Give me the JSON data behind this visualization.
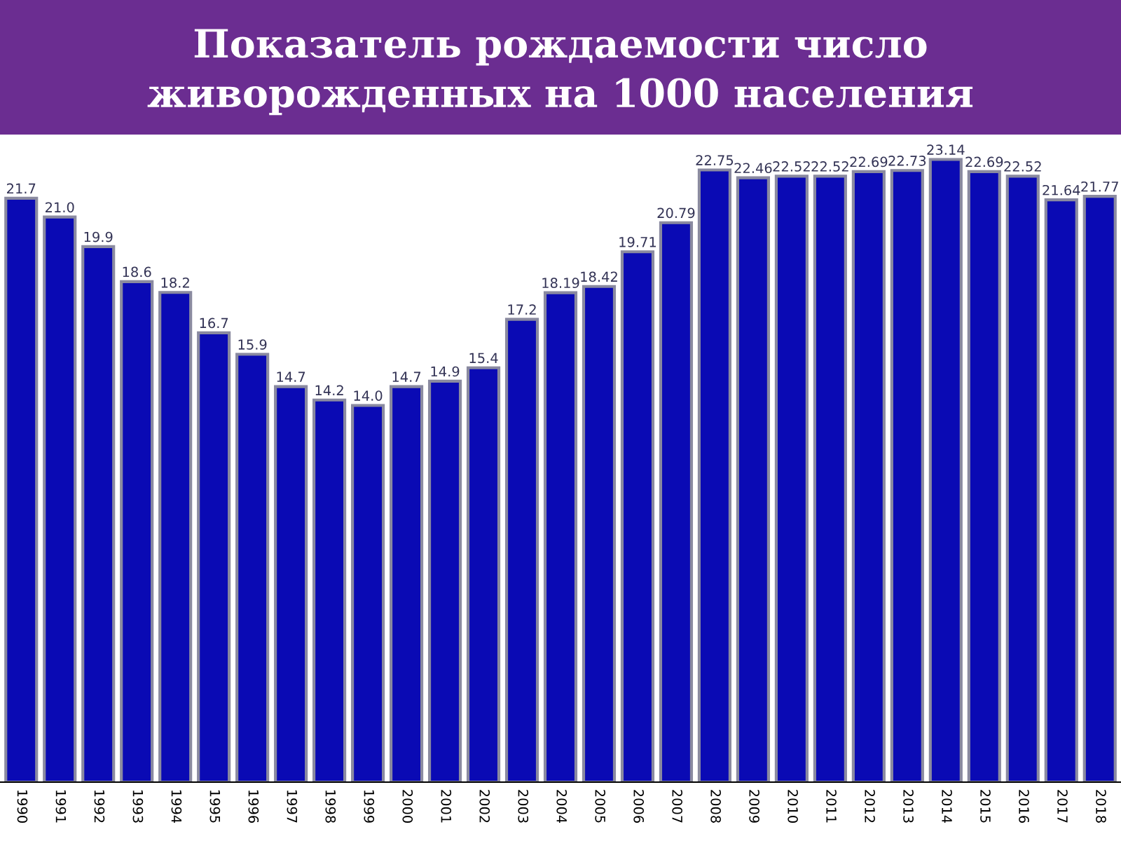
{
  "chart_data": {
    "type": "bar",
    "title": "Показатель рождаемости число\nживорожденных на 1000 населения",
    "categories": [
      "1990",
      "1991",
      "1992",
      "1993",
      "1994",
      "1995",
      "1996",
      "1997",
      "1998",
      "1999",
      "2000",
      "2001",
      "2002",
      "2003",
      "2004",
      "2005",
      "2006",
      "2007",
      "2008",
      "2009",
      "2010",
      "2011",
      "2012",
      "2013",
      "2014",
      "2015",
      "2016",
      "2017",
      "2018"
    ],
    "values": [
      21.7,
      21.0,
      19.9,
      18.6,
      18.2,
      16.7,
      15.9,
      14.7,
      14.2,
      14.0,
      14.7,
      14.9,
      15.4,
      17.2,
      18.19,
      18.42,
      19.71,
      20.79,
      22.75,
      22.46,
      22.52,
      22.52,
      22.69,
      22.73,
      23.14,
      22.69,
      22.52,
      21.64,
      21.77
    ],
    "value_labels": [
      "21.7",
      "21.0",
      "19.9",
      "18.6",
      "18.2",
      "16.7",
      "15.9",
      "14.7",
      "14.2",
      "14.0",
      "14.7",
      "14.9",
      "15.4",
      "17.2",
      "18.19",
      "18.42",
      "19.71",
      "20.79",
      "22.75",
      "22.46",
      "22.52",
      "22.52",
      "22.69",
      "22.73",
      "23.14",
      "22.69",
      "22.52",
      "21.64",
      "21.77"
    ],
    "color": "#0a0ab4",
    "tick_labels": "x",
    "grid": false,
    "legend": false
  }
}
